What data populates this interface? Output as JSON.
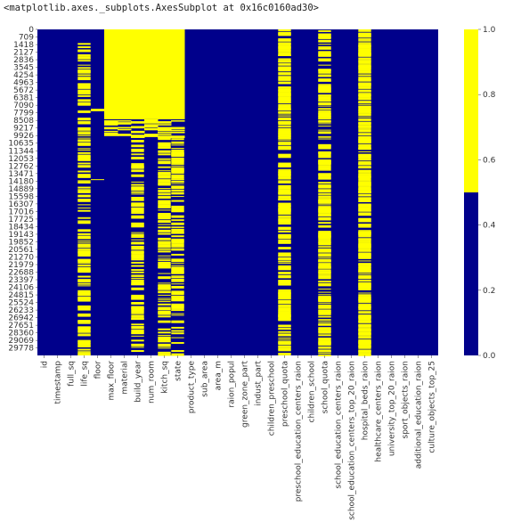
{
  "output_repr": "<matplotlib.axes._subplots.AxesSubplot at 0x16c0160ad30>",
  "colors": {
    "missing": "#ffff00",
    "present": "#00008b"
  },
  "chart_data": {
    "type": "heatmap",
    "title": "",
    "xlabel": "",
    "ylabel": "",
    "n_rows": 30471,
    "yticks": [
      0,
      709,
      1418,
      2127,
      2836,
      3545,
      4254,
      4963,
      5672,
      6381,
      7090,
      7799,
      8508,
      9217,
      9926,
      10635,
      11344,
      12053,
      12762,
      13471,
      14180,
      14889,
      15598,
      16307,
      17016,
      17725,
      18434,
      19143,
      19852,
      20561,
      21270,
      21979,
      22688,
      23397,
      24106,
      24815,
      25524,
      26233,
      26942,
      27651,
      28360,
      29069,
      29778
    ],
    "columns": [
      "id",
      "timestamp",
      "full_sq",
      "life_sq",
      "floor",
      "max_floor",
      "material",
      "build_year",
      "num_room",
      "kitch_sq",
      "state",
      "product_type",
      "sub_area",
      "area_m",
      "raion_popul",
      "green_zone_part",
      "indust_part",
      "children_preschool",
      "preschool_quota",
      "preschool_education_centers_raion",
      "children_school",
      "school_quota",
      "school_education_centers_raion",
      "school_education_centers_top_20_raion",
      "hospital_beds_raion",
      "healthcare_centers_raion",
      "university_top_20_raion",
      "sport_objects_raion",
      "additional_education_raion",
      "culture_objects_top_25"
    ],
    "x_ticklabels": [
      "id",
      "timestamp",
      "full_sq",
      "life_sq",
      "floor",
      "max_floor",
      "material",
      "build_year",
      "num_room",
      "kitch_sq",
      "state",
      "product_type",
      "sub_area",
      "area_m",
      "raion_popul",
      "green_zone_part",
      "indust_part",
      "children_preschool",
      "preschool_quota",
      "preschool_education_centers_raion",
      "children_school",
      "school_quota",
      "school_education_centers_raion",
      "school_education_centers_top_20_raion",
      "hospital_beds_raion",
      "healthcare_centers_raion",
      "university_top_20_raion",
      "sport_objects_raion",
      "additional_education_raion",
      "culture_objects_top_25"
    ],
    "missing_pattern": {
      "id": "none",
      "timestamp": "none",
      "full_sq": "none",
      "life_sq": "sparse",
      "floor": "few",
      "max_floor": "block",
      "material": "block",
      "build_year": "block_sparse",
      "num_room": "block",
      "kitch_sq": "block_sparse",
      "state": "block_sparse",
      "product_type": "none",
      "sub_area": "none",
      "area_m": "none",
      "raion_popul": "none",
      "green_zone_part": "none",
      "indust_part": "none",
      "children_preschool": "none",
      "preschool_quota": "dense",
      "preschool_education_centers_raion": "none",
      "children_school": "none",
      "school_quota": "dense",
      "school_education_centers_raion": "none",
      "school_education_centers_top_20_raion": "none",
      "hospital_beds_raion": "very_dense",
      "healthcare_centers_raion": "none",
      "university_top_20_raion": "none",
      "sport_objects_raion": "none",
      "additional_education_raion": "none",
      "culture_objects_top_25": "none"
    },
    "colorbar": {
      "ticks": [
        0.0,
        0.2,
        0.4,
        0.6,
        0.8,
        1.0
      ],
      "tick_labels": [
        "0.0",
        "0.2",
        "0.4",
        "0.6",
        "0.8",
        "1.0"
      ],
      "range": [
        0,
        1
      ],
      "split": 0.5
    },
    "legend": "colorbar-right",
    "grid": false
  }
}
